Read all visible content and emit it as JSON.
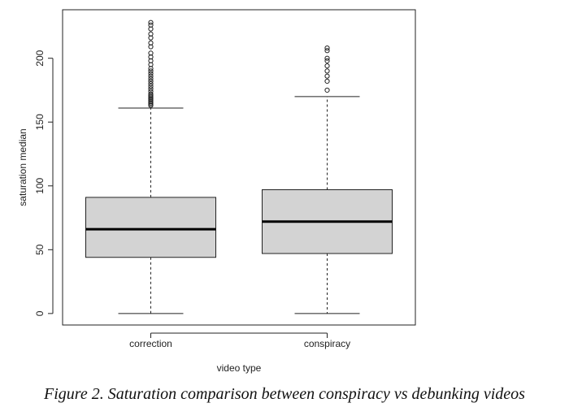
{
  "caption": "Figure 2.  Saturation comparison between conspiracy vs debunking videos",
  "chart_data": {
    "type": "box",
    "xlabel": "video type",
    "ylabel": "saturation median",
    "categories": [
      "correction",
      "conspiracy"
    ],
    "ylim": [
      -9,
      238
    ],
    "yticks": [
      0,
      50,
      100,
      150,
      200
    ],
    "boxes": [
      {
        "name": "correction",
        "whisker_low": 0,
        "q1": 44,
        "median": 66,
        "q3": 91,
        "whisker_high": 161,
        "outliers": [
          163,
          164,
          165,
          166,
          167,
          168,
          169,
          170,
          171,
          172,
          174,
          176,
          178,
          180,
          182,
          184,
          186,
          188,
          190,
          192,
          195,
          198,
          201,
          204,
          209,
          212,
          216,
          219,
          223,
          226,
          228
        ]
      },
      {
        "name": "conspiracy",
        "whisker_low": 0,
        "q1": 47,
        "median": 72,
        "q3": 97,
        "whisker_high": 170,
        "outliers": [
          175,
          182,
          186,
          190,
          194,
          198,
          200,
          206,
          208
        ]
      }
    ],
    "box_fill": "#d3d3d3",
    "grid": false
  }
}
